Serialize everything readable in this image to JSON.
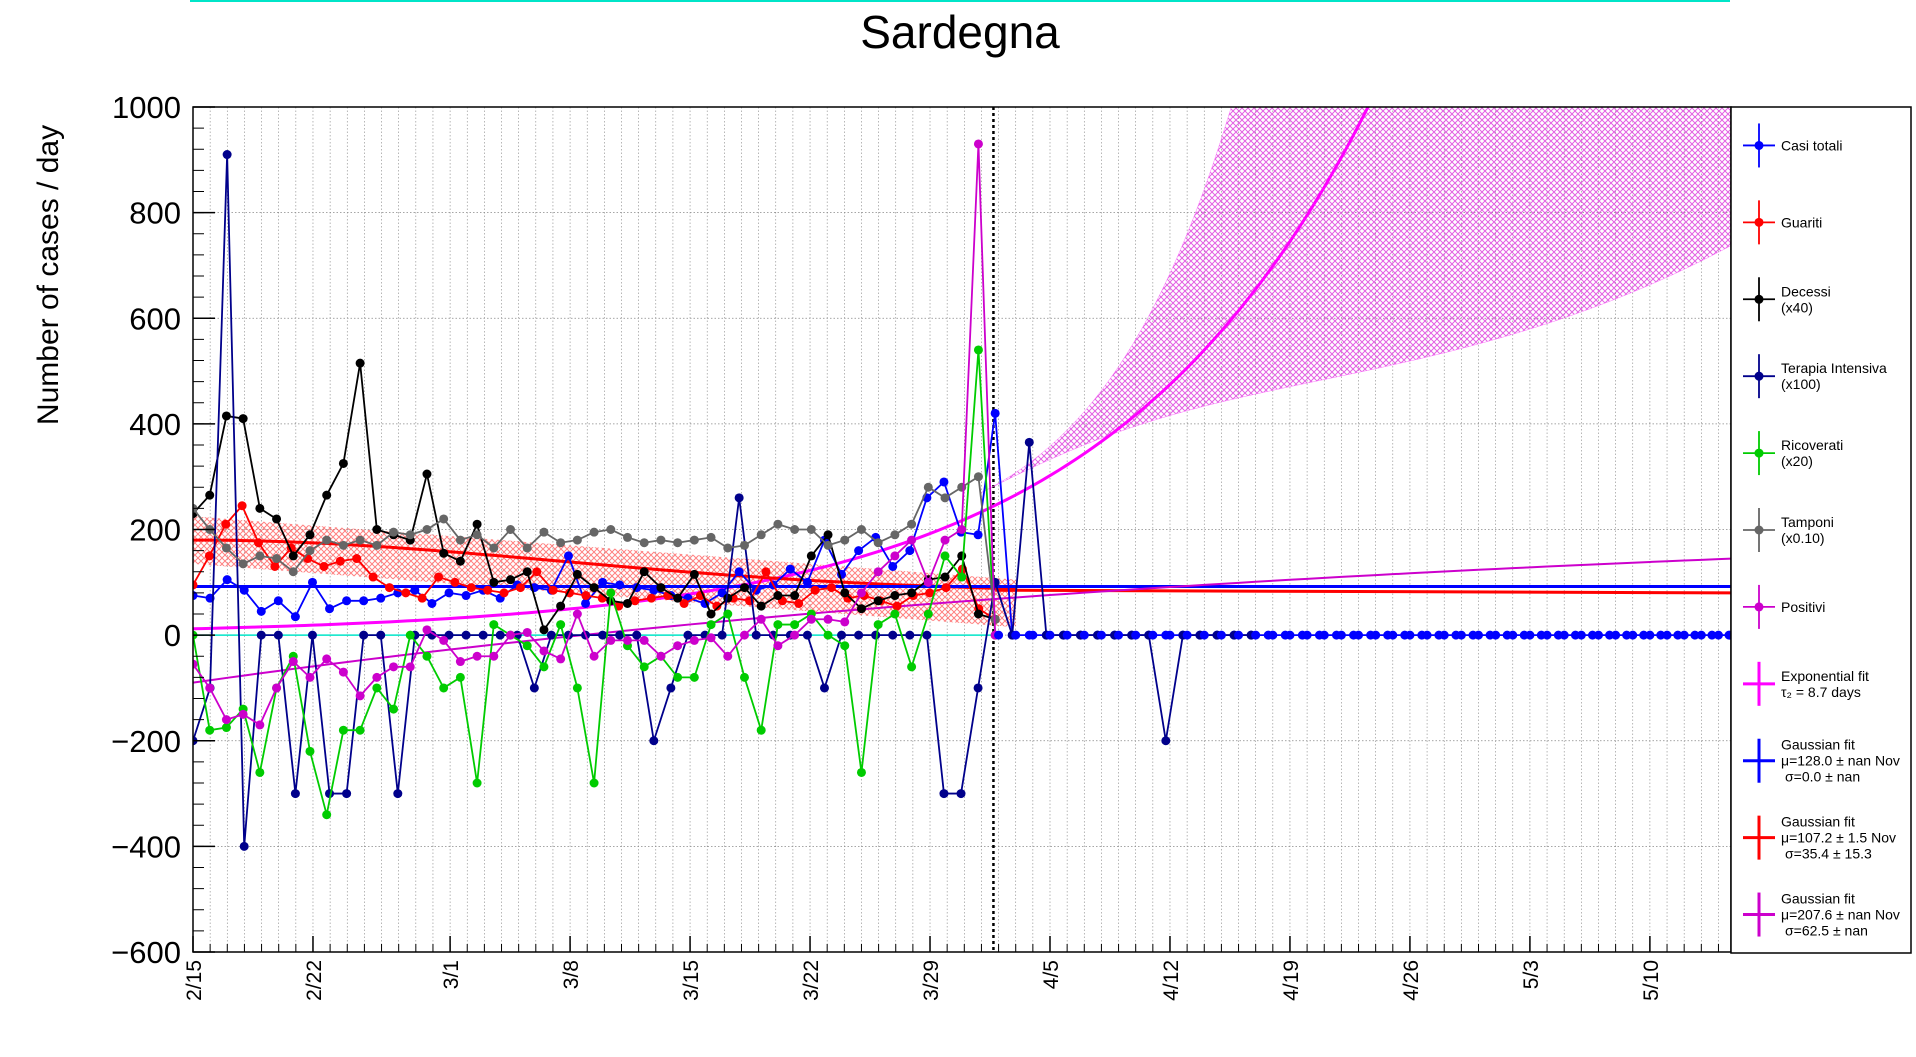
{
  "chart_data": {
    "type": "line",
    "title": "Sardegna",
    "ylabel": "Number of cases / day",
    "xlabel": "",
    "ylim": [
      -600,
      1000
    ],
    "xlim": [
      "2/15",
      "5/17"
    ],
    "grid": true,
    "legend_position": "right",
    "x_ticks": [
      "2/15",
      "2/22",
      "3/1",
      "3/8",
      "3/15",
      "3/22",
      "3/29",
      "4/5",
      "4/12",
      "4/19",
      "4/26",
      "5/3",
      "5/10"
    ],
    "y_ticks": [
      -600,
      -400,
      -200,
      0,
      200,
      400,
      600,
      800,
      1000
    ],
    "series": [
      {
        "key": "casi",
        "name": "Casi totali",
        "color": "#0000ff",
        "start": "2/15",
        "values": [
          75,
          70,
          105,
          85,
          45,
          65,
          35,
          100,
          50,
          65,
          65,
          70,
          80,
          85,
          60,
          80,
          75,
          85,
          70,
          95,
          90,
          85,
          150,
          60,
          100,
          95,
          90,
          85,
          75,
          70,
          60,
          80,
          120,
          85,
          95,
          125,
          100,
          180,
          115,
          160,
          185,
          130,
          160,
          260,
          290,
          195,
          190,
          420,
          0,
          0,
          0,
          0,
          0,
          0,
          0,
          0,
          0,
          0,
          0,
          0,
          0,
          0,
          0,
          0,
          0,
          0,
          0,
          0,
          0,
          0,
          0,
          0,
          0,
          0,
          0,
          0,
          0,
          0,
          0,
          0,
          0,
          0,
          0,
          0,
          0,
          0,
          0,
          0,
          0,
          0,
          0
        ]
      },
      {
        "key": "guariti",
        "name": "Guariti",
        "color": "#ff0000",
        "start": "2/15",
        "values": [
          95,
          150,
          210,
          245,
          175,
          130,
          165,
          145,
          130,
          140,
          145,
          110,
          90,
          80,
          70,
          110,
          100,
          90,
          85,
          80,
          90,
          120,
          85,
          80,
          75,
          70,
          55,
          65,
          70,
          75,
          60,
          75,
          55,
          70,
          65,
          120,
          65,
          60,
          85,
          90,
          70,
          75,
          65,
          55,
          75,
          80,
          90,
          125,
          50,
          30
        ]
      },
      {
        "key": "decessi",
        "name": "Decessi (x40)",
        "color": "#000000",
        "start": "2/15",
        "values": [
          230,
          265,
          415,
          410,
          240,
          220,
          150,
          190,
          265,
          325,
          515,
          200,
          190,
          180,
          305,
          155,
          140,
          210,
          100,
          105,
          120,
          10,
          55,
          115,
          90,
          65,
          60,
          120,
          90,
          70,
          115,
          40,
          70,
          90,
          55,
          75,
          75,
          150,
          190,
          80,
          50,
          65,
          75,
          80,
          105,
          110,
          150,
          40,
          30
        ]
      },
      {
        "key": "terapia",
        "name": "Terapia Intensiva (x100)",
        "color": "#00008b",
        "start": "2/15",
        "values": [
          -200,
          -100,
          910,
          -400,
          0,
          0,
          -300,
          0,
          -300,
          -300,
          0,
          0,
          -300,
          0,
          0,
          0,
          0,
          0,
          0,
          0,
          -100,
          0,
          0,
          0,
          0,
          0,
          0,
          -200,
          -100,
          0,
          0,
          0,
          260,
          0,
          0,
          0,
          0,
          -100,
          0,
          0,
          0,
          0,
          0,
          0,
          -300,
          -300,
          -100,
          100,
          0,
          365,
          0,
          0,
          0,
          0,
          0,
          0,
          0,
          -200,
          0,
          0,
          0,
          0,
          0
        ]
      },
      {
        "key": "ricoverati",
        "name": "Ricoverati (x20)",
        "color": "#00cc00",
        "start": "2/15",
        "values": [
          0,
          -180,
          -175,
          -140,
          -260,
          -100,
          -40,
          -220,
          -340,
          -180,
          -180,
          -100,
          -140,
          0,
          -40,
          -100,
          -80,
          -280,
          20,
          0,
          -20,
          -60,
          20,
          -100,
          -280,
          80,
          -20,
          -60,
          -40,
          -80,
          -80,
          20,
          40,
          -80,
          -180,
          20,
          20,
          40,
          0,
          -20,
          -260,
          20,
          40,
          -60,
          40,
          150,
          110,
          540,
          0
        ]
      },
      {
        "key": "tamponi",
        "name": "Tamponi (x0.10)",
        "color": "#666666",
        "start": "2/15",
        "values": [
          240,
          200,
          165,
          135,
          150,
          145,
          120,
          160,
          180,
          170,
          180,
          170,
          195,
          190,
          200,
          220,
          180,
          190,
          165,
          200,
          165,
          195,
          175,
          180,
          195,
          200,
          185,
          175,
          180,
          175,
          180,
          185,
          165,
          170,
          190,
          210,
          200,
          200,
          170,
          180,
          200,
          175,
          190,
          210,
          280,
          260,
          280,
          300,
          30
        ]
      },
      {
        "key": "positivi",
        "name": "Positivi",
        "color": "#cc00cc",
        "start": "2/15",
        "values": [
          -55,
          -100,
          -160,
          -150,
          -170,
          -100,
          -50,
          -80,
          -45,
          -70,
          -115,
          -80,
          -60,
          -60,
          10,
          -10,
          -50,
          -40,
          -40,
          0,
          5,
          -30,
          -45,
          40,
          -40,
          -10,
          -10,
          -10,
          -40,
          -20,
          -10,
          -5,
          -40,
          0,
          30,
          -20,
          0,
          30,
          30,
          25,
          80,
          120,
          150,
          180,
          100,
          180,
          200,
          930,
          0
        ]
      }
    ],
    "fits": [
      {
        "key": "expfit",
        "name": "Exponential fit",
        "detail": "τ₂ = 8.7 days",
        "color": "#ff00ff",
        "type": "exponential",
        "tau2_days": 8.7
      },
      {
        "key": "gaus_blue",
        "name": "Gaussian fit",
        "mu": "μ=128.0 ± nan Nov",
        "sigma": "σ=0.0 ± nan",
        "color": "#0000ff",
        "level": 90
      },
      {
        "key": "gaus_red",
        "name": "Gaussian fit",
        "mu": "μ=107.2 ± 1.5 Nov",
        "sigma": "σ=35.4 ± 15.3",
        "color": "#ff0000",
        "level": 80
      },
      {
        "key": "gaus_mag",
        "name": "Gaussian fit",
        "mu": "μ=207.6 ± nan Nov",
        "sigma": "σ=62.5 ± nan",
        "color": "#cc00cc",
        "level": 230
      }
    ],
    "legend": [
      {
        "key": "casi",
        "line1": "Casi totali",
        "line2": "",
        "color": "#0000ff"
      },
      {
        "key": "guariti",
        "line1": "Guariti",
        "line2": "",
        "color": "#ff0000"
      },
      {
        "key": "decessi",
        "line1": "Decessi",
        "line2": "(x40)",
        "color": "#000000"
      },
      {
        "key": "terapia",
        "line1": "Terapia Intensiva",
        "line2": "(x100)",
        "color": "#00008b"
      },
      {
        "key": "ricoverati",
        "line1": "Ricoverati",
        "line2": "(x20)",
        "color": "#00cc00"
      },
      {
        "key": "tamponi",
        "line1": "Tamponi",
        "line2": "(x0.10)",
        "color": "#666666"
      },
      {
        "key": "positivi",
        "line1": "Positivi",
        "line2": "",
        "color": "#cc00cc"
      },
      {
        "key": "expfit",
        "line1": "Exponential fit",
        "line2": "τ₂ = 8.7 days",
        "color": "#ff00ff"
      },
      {
        "key": "gaus_blue",
        "line1": "Gaussian fit",
        "line2": "μ=128.0 ± nan Nov",
        "line3": "σ=0.0 ± nan",
        "color": "#0000ff"
      },
      {
        "key": "gaus_red",
        "line1": "Gaussian fit",
        "line2": "μ=107.2 ± 1.5 Nov",
        "line3": "σ=35.4 ± 15.3",
        "color": "#ff0000"
      },
      {
        "key": "gaus_mag",
        "line1": "Gaussian fit",
        "line2": "μ=207.6 ± nan Nov",
        "line3": "σ=62.5 ± nan",
        "color": "#cc00cc"
      }
    ]
  }
}
